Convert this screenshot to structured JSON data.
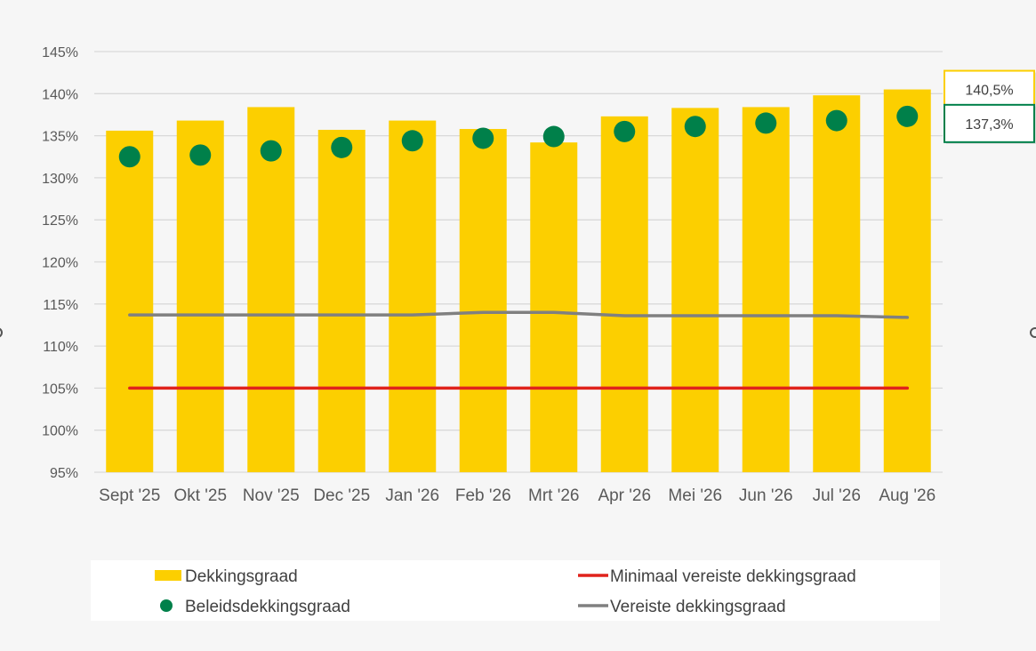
{
  "chart_data": {
    "type": "bar",
    "categories": [
      "Sept '25",
      "Okt '25",
      "Nov '25",
      "Dec '25",
      "Jan '26",
      "Feb '26",
      "Mrt '26",
      "Apr '26",
      "Mei '26",
      "Jun '26",
      "Jul '26",
      "Aug '26"
    ],
    "series": [
      {
        "name": "Dekkingsgraad",
        "type": "bar",
        "color": "#fccf00",
        "values": [
          135.6,
          136.8,
          138.4,
          135.7,
          136.8,
          135.8,
          134.2,
          137.3,
          138.3,
          138.4,
          139.8,
          140.5
        ]
      },
      {
        "name": "Beleidsdekkingsgraad",
        "type": "scatter",
        "color": "#00804a",
        "values": [
          132.5,
          132.7,
          133.2,
          133.6,
          134.4,
          134.7,
          134.9,
          135.5,
          136.1,
          136.5,
          136.8,
          137.3
        ]
      },
      {
        "name": "Minimaal vereiste dekkingsgraad",
        "type": "line",
        "color": "#e0231c",
        "values": [
          105.0,
          105.0,
          105.0,
          105.0,
          105.0,
          105.0,
          105.0,
          105.0,
          105.0,
          105.0,
          105.0,
          105.0
        ]
      },
      {
        "name": "Vereiste dekkingsgraad",
        "type": "line",
        "color": "#808080",
        "values": [
          113.7,
          113.7,
          113.7,
          113.7,
          113.7,
          114.0,
          114.0,
          113.6,
          113.6,
          113.6,
          113.6,
          113.4
        ]
      }
    ],
    "y_ticks": [
      "95%",
      "100%",
      "105%",
      "110%",
      "115%",
      "120%",
      "125%",
      "130%",
      "135%",
      "140%",
      "145%"
    ],
    "ylim": [
      95,
      145
    ],
    "grid": true,
    "legend_position": "bottom",
    "callouts": [
      {
        "text": "140,5%",
        "series": "Dekkingsgraad",
        "border_color": "#fccf00"
      },
      {
        "text": "137,3%",
        "series": "Beleidsdekkingsgraad",
        "border_color": "#00804a"
      }
    ]
  }
}
